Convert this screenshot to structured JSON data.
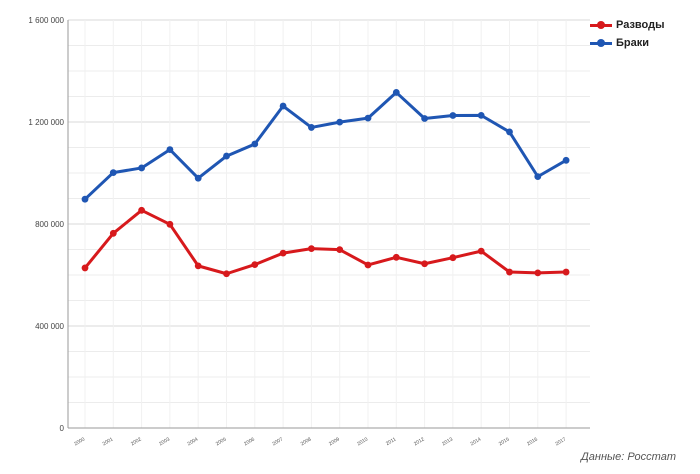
{
  "chart_data": {
    "type": "line",
    "title": "",
    "xlabel": "",
    "ylabel": "",
    "categories": [
      "2000",
      "2001",
      "2002",
      "2003",
      "2004",
      "2005",
      "2006",
      "2007",
      "2008",
      "2009",
      "2010",
      "2011",
      "2012",
      "2013",
      "2014",
      "2015",
      "2016",
      "2017"
    ],
    "ylim": [
      0,
      1600000
    ],
    "y_ticks": [
      0,
      400000,
      800000,
      1200000,
      1600000
    ],
    "y_tick_labels": [
      "0",
      "400 000",
      "800 000",
      "1 200 000",
      "1 600 000"
    ],
    "grid": true,
    "legend_position": "top-right",
    "series": [
      {
        "name": "Разводы",
        "color": "#d7191c",
        "values": [
          627700,
          763500,
          853600,
          798800,
          635800,
          604900,
          640800,
          685900,
          703400,
          699400,
          639300,
          669400,
          644100,
          667900,
          693700,
          611600,
          608300,
          611600
        ]
      },
      {
        "name": "Браки",
        "color": "#1f56b3",
        "values": [
          897300,
          1001600,
          1019800,
          1091800,
          979700,
          1066400,
          1113600,
          1262600,
          1178700,
          1199400,
          1215100,
          1316000,
          1213600,
          1225500,
          1226000,
          1161100,
          985800,
          1049700
        ]
      }
    ],
    "source": "Данные: Росстат"
  }
}
